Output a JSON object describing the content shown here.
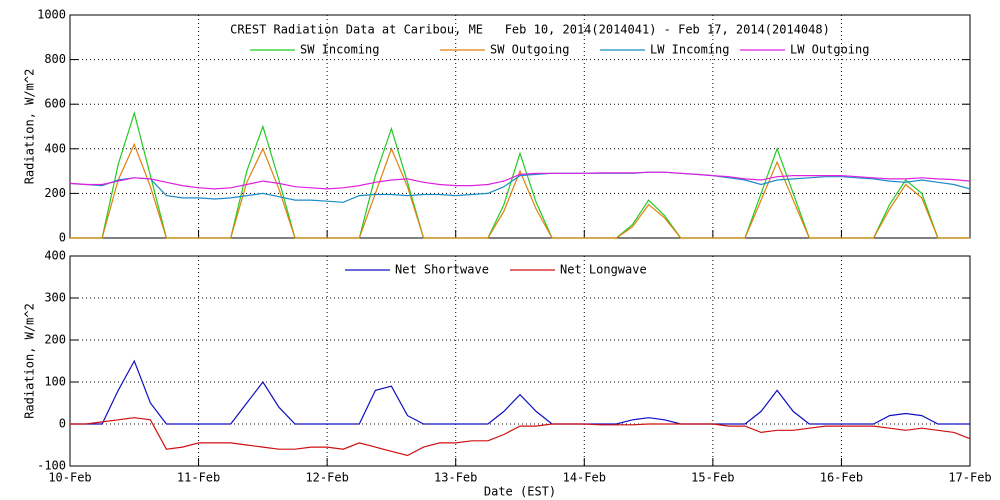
{
  "chart_data": [
    {
      "type": "line",
      "title": "CREST Radiation Data at Caribou, ME   Feb 10, 2014(2014041) - Feb 17, 2014(2014048)",
      "y_label": "Radiation, W/m^2",
      "x": [
        0,
        3,
        6,
        9,
        12,
        15,
        18,
        21,
        24,
        27,
        30,
        33,
        36,
        39,
        42,
        45,
        48,
        51,
        54,
        57,
        60,
        63,
        66,
        69,
        72,
        75,
        78,
        81,
        84,
        87,
        90,
        93,
        96,
        99,
        102,
        105,
        108,
        111,
        114,
        117,
        120,
        123,
        126,
        129,
        132,
        135,
        138,
        141,
        144,
        147,
        150,
        153,
        156,
        159,
        162,
        165,
        168
      ],
      "xlim": [
        0,
        168
      ],
      "xticks": [
        {
          "value": 0,
          "label": "10-Feb"
        },
        {
          "value": 24,
          "label": "11-Feb"
        },
        {
          "value": 48,
          "label": "12-Feb"
        },
        {
          "value": 72,
          "label": "13-Feb"
        },
        {
          "value": 96,
          "label": "14-Feb"
        },
        {
          "value": 120,
          "label": "15-Feb"
        },
        {
          "value": 144,
          "label": "16-Feb"
        },
        {
          "value": 168,
          "label": "17-Feb"
        }
      ],
      "ylim": [
        0,
        1000
      ],
      "yticks": [
        0,
        200,
        400,
        600,
        800,
        1000
      ],
      "grid": true,
      "series": [
        {
          "name": "SW Incoming",
          "color": "#22cc22",
          "values": [
            0,
            0,
            0,
            330,
            560,
            280,
            0,
            0,
            0,
            0,
            0,
            300,
            500,
            260,
            0,
            0,
            0,
            0,
            0,
            280,
            490,
            250,
            0,
            0,
            0,
            0,
            0,
            150,
            380,
            160,
            0,
            0,
            0,
            0,
            0,
            60,
            170,
            100,
            0,
            0,
            0,
            0,
            0,
            200,
            400,
            200,
            0,
            0,
            0,
            0,
            0,
            150,
            260,
            200,
            0,
            0,
            0
          ]
        },
        {
          "name": "SW Outgoing",
          "color": "#e08010",
          "values": [
            0,
            0,
            0,
            260,
            420,
            230,
            0,
            0,
            0,
            0,
            0,
            250,
            400,
            220,
            0,
            0,
            0,
            0,
            0,
            200,
            400,
            230,
            0,
            0,
            0,
            0,
            0,
            120,
            300,
            130,
            0,
            0,
            0,
            0,
            0,
            50,
            150,
            90,
            0,
            0,
            0,
            0,
            0,
            170,
            340,
            170,
            0,
            0,
            0,
            0,
            0,
            130,
            240,
            180,
            0,
            0,
            0
          ]
        },
        {
          "name": "LW Incoming",
          "color": "#1a8cc8",
          "values": [
            245,
            240,
            235,
            260,
            270,
            265,
            190,
            180,
            180,
            175,
            180,
            190,
            200,
            185,
            170,
            170,
            165,
            160,
            190,
            195,
            195,
            190,
            195,
            195,
            190,
            195,
            200,
            230,
            280,
            285,
            290,
            290,
            290,
            290,
            290,
            290,
            295,
            295,
            290,
            285,
            280,
            270,
            260,
            240,
            260,
            265,
            270,
            275,
            275,
            270,
            265,
            255,
            250,
            260,
            250,
            240,
            220
          ]
        },
        {
          "name": "LW Outgoing",
          "color": "#e020e0",
          "values": [
            245,
            240,
            240,
            255,
            270,
            265,
            250,
            235,
            225,
            220,
            225,
            240,
            255,
            245,
            230,
            225,
            220,
            225,
            235,
            250,
            260,
            265,
            250,
            240,
            235,
            235,
            240,
            255,
            285,
            290,
            290,
            290,
            290,
            292,
            292,
            292,
            295,
            295,
            290,
            285,
            280,
            275,
            265,
            260,
            275,
            280,
            280,
            280,
            280,
            275,
            270,
            265,
            265,
            270,
            265,
            262,
            255
          ]
        }
      ]
    },
    {
      "type": "line",
      "y_label": "Radiation, W/m^2",
      "x_label": "Date (EST)",
      "x": [
        0,
        3,
        6,
        9,
        12,
        15,
        18,
        21,
        24,
        27,
        30,
        33,
        36,
        39,
        42,
        45,
        48,
        51,
        54,
        57,
        60,
        63,
        66,
        69,
        72,
        75,
        78,
        81,
        84,
        87,
        90,
        93,
        96,
        99,
        102,
        105,
        108,
        111,
        114,
        117,
        120,
        123,
        126,
        129,
        132,
        135,
        138,
        141,
        144,
        147,
        150,
        153,
        156,
        159,
        162,
        165,
        168
      ],
      "xlim": [
        0,
        168
      ],
      "xticks": [
        {
          "value": 0,
          "label": "10-Feb"
        },
        {
          "value": 24,
          "label": "11-Feb"
        },
        {
          "value": 48,
          "label": "12-Feb"
        },
        {
          "value": 72,
          "label": "13-Feb"
        },
        {
          "value": 96,
          "label": "14-Feb"
        },
        {
          "value": 120,
          "label": "15-Feb"
        },
        {
          "value": 144,
          "label": "16-Feb"
        },
        {
          "value": 168,
          "label": "17-Feb"
        }
      ],
      "ylim": [
        -100,
        400
      ],
      "yticks": [
        -100,
        0,
        100,
        200,
        300,
        400
      ],
      "grid": true,
      "series": [
        {
          "name": "Net Shortwave",
          "color": "#1010c0",
          "values": [
            0,
            0,
            0,
            80,
            150,
            50,
            0,
            0,
            0,
            0,
            0,
            50,
            100,
            40,
            0,
            0,
            0,
            0,
            0,
            80,
            90,
            20,
            0,
            0,
            0,
            0,
            0,
            30,
            70,
            30,
            0,
            0,
            0,
            0,
            0,
            10,
            15,
            10,
            0,
            0,
            0,
            0,
            0,
            30,
            80,
            30,
            0,
            0,
            0,
            0,
            0,
            20,
            25,
            20,
            0,
            0,
            0
          ]
        },
        {
          "name": "Net Longwave",
          "color": "#d01010",
          "values": [
            0,
            0,
            5,
            10,
            15,
            10,
            -60,
            -55,
            -45,
            -45,
            -45,
            -50,
            -55,
            -60,
            -60,
            -55,
            -55,
            -60,
            -45,
            -55,
            -65,
            -75,
            -55,
            -45,
            -45,
            -40,
            -40,
            -25,
            -5,
            -5,
            0,
            0,
            0,
            -2,
            -2,
            -2,
            0,
            0,
            0,
            0,
            0,
            -5,
            -5,
            -20,
            -15,
            -15,
            -10,
            -5,
            -5,
            -5,
            -5,
            -10,
            -15,
            -10,
            -15,
            -20,
            -35
          ]
        }
      ]
    }
  ]
}
